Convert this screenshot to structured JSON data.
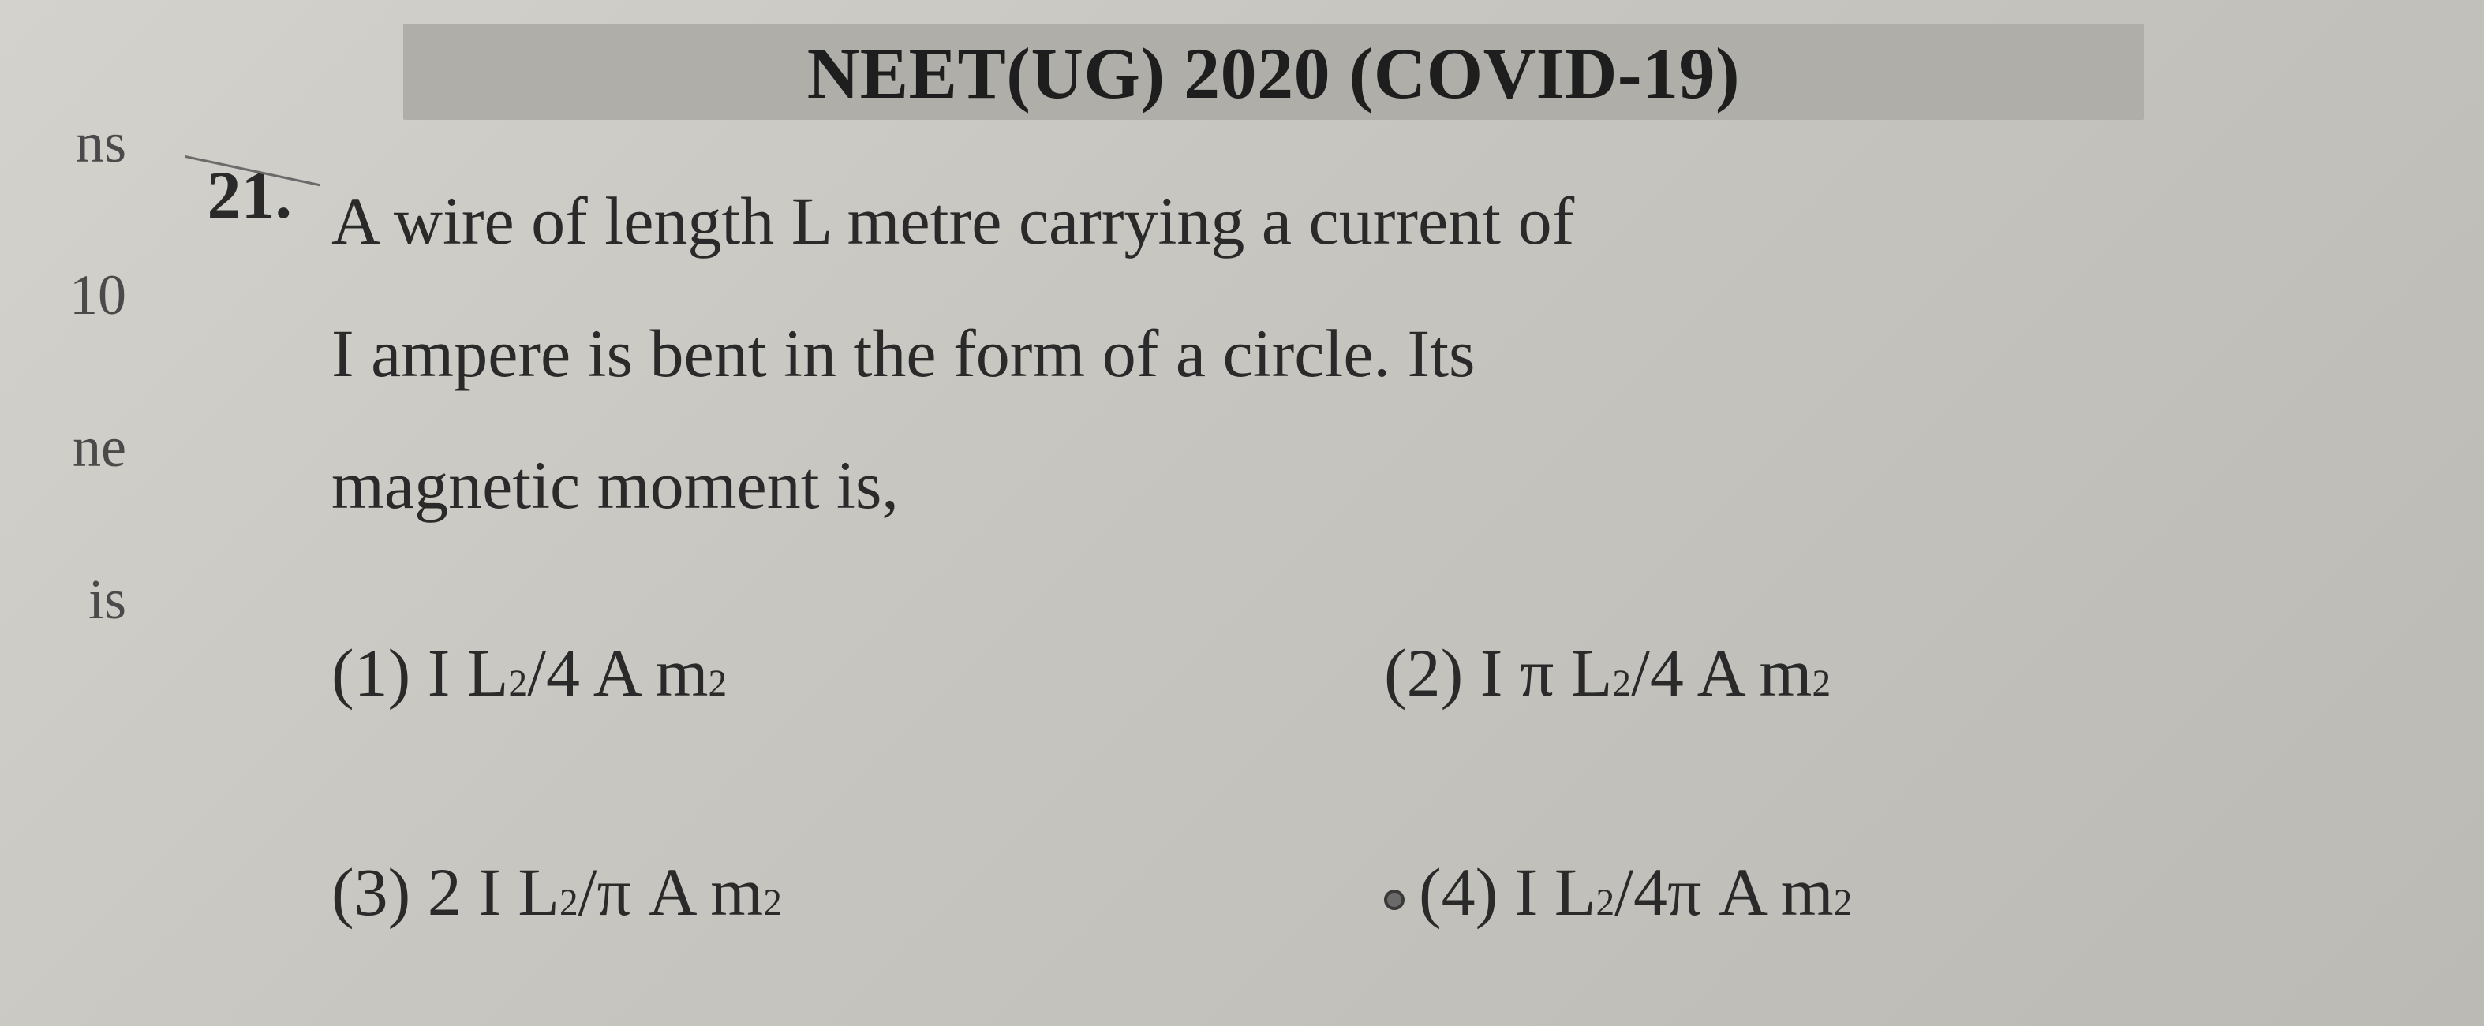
{
  "colors": {
    "paper_bg_start": "#d4d2cc",
    "paper_bg_end": "#bcbab4",
    "heading_bg": "#b0aea8",
    "text_primary": "#2a2a2a",
    "text_heading": "#1e1e1e",
    "margin_text": "#4a4a4a",
    "strike": "#6a6a6a"
  },
  "typography": {
    "heading_fontsize": 92,
    "body_fontsize": 86,
    "margin_fontsize": 72,
    "family": "Times New Roman"
  },
  "left_margin_fragments": [
    "ns",
    "10",
    "ne",
    "is"
  ],
  "heading": "NEET(UG) 2020 (COVID-19)",
  "question": {
    "number": "21.",
    "struck": true,
    "text_lines": [
      "A wire of length L metre carrying a current of",
      "I ampere is bent in the form of a circle. Its",
      "magnetic moment is,"
    ]
  },
  "options": [
    {
      "label": "(1)",
      "core": "I L",
      "exp1": "2",
      "mid": "/4 A m",
      "exp2": "2",
      "prefix_dot": false,
      "has_pi_after_I": false
    },
    {
      "label": "(2)",
      "core": "I π L",
      "exp1": "2",
      "mid": " /4 A m",
      "exp2": "2",
      "prefix_dot": false,
      "has_pi_after_I": true
    },
    {
      "label": "(3)",
      "core": "2 I L",
      "exp1": "2",
      "mid": " /π A m",
      "exp2": "2",
      "prefix_dot": false,
      "has_pi_after_I": false
    },
    {
      "label": "(4)",
      "core": "I L",
      "exp1": "2",
      "mid": " /4π A m",
      "exp2": "2",
      "prefix_dot": true,
      "has_pi_after_I": false
    }
  ]
}
